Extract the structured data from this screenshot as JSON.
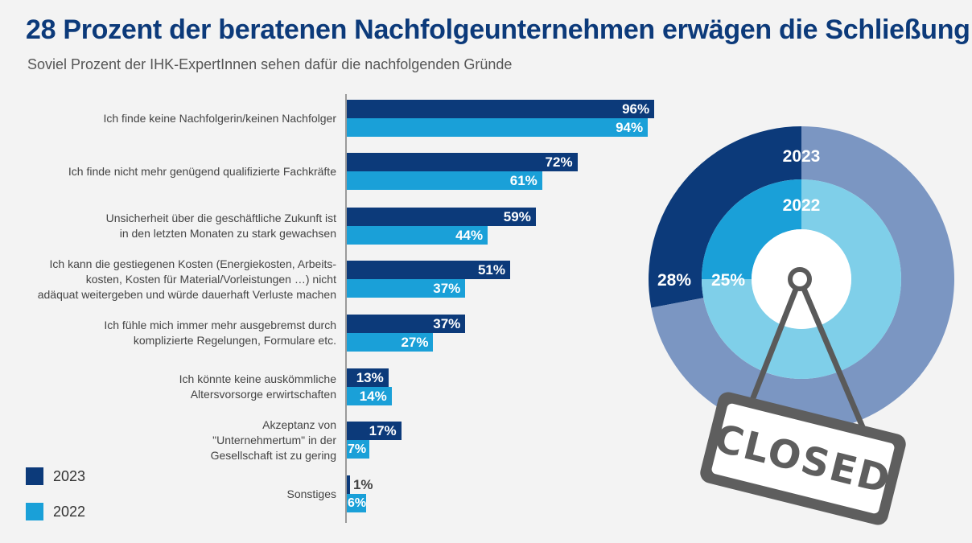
{
  "title": "28 Prozent der beratenen Nachfolgeunternehmen erwägen die Schließung",
  "subtitle": "Soviel Prozent der IHK-ExpertInnen sehen dafür die nachfolgenden Gründe",
  "colors": {
    "s2023": "#0c3a7a",
    "s2022": "#1aa0d8",
    "title": "#0c3a7a"
  },
  "legend": [
    {
      "label": "2023",
      "color": "#0c3a7a"
    },
    {
      "label": "2022",
      "color": "#1aa0d8"
    }
  ],
  "chart_data": [
    {
      "type": "bar",
      "orientation": "horizontal",
      "categories": [
        "Ich finde keine Nachfolgerin/keinen Nachfolger",
        "Ich finde nicht mehr genügend qualifizierte Fachkräfte",
        "Unsicherheit über die geschäftliche Zukunft ist in den letzten Monaten zu stark gewachsen",
        "Ich kann die gestiegenen Kosten (Energiekosten, Arbeits-kosten, Kosten für Material/Vorleistungen …) nicht adäquat weitergeben und würde dauerhaft Verluste machen",
        "Ich fühle mich immer mehr ausgebremst durch komplizierte Regelungen, Formulare etc.",
        "Ich könnte keine auskömmliche Altersvorsorge erwirtschaften",
        "Akzeptanz von \"Unternehmertum\" in der Gesellschaft ist zu gering",
        "Sonstiges"
      ],
      "category_lines": [
        [
          "Ich finde keine Nachfolgerin/keinen Nachfolger"
        ],
        [
          "Ich finde nicht mehr genügend qualifizierte Fachkräfte"
        ],
        [
          "Unsicherheit über die geschäftliche Zukunft ist",
          "in den letzten Monaten zu stark gewachsen"
        ],
        [
          "Ich kann die gestiegenen Kosten (Energiekosten, Arbeits-",
          "kosten, Kosten für Material/Vorleistungen …) nicht",
          "adäquat weitergeben und würde dauerhaft Verluste machen"
        ],
        [
          "Ich fühle mich immer mehr ausgebremst durch",
          "komplizierte Regelungen, Formulare etc."
        ],
        [
          "Ich könnte keine auskömmliche",
          "Altersvorsorge erwirtschaften"
        ],
        [
          "Akzeptanz von",
          "\"Unternehmertum\" in der",
          "Gesellschaft ist zu gering"
        ],
        [
          "Sonstiges"
        ]
      ],
      "series": [
        {
          "name": "2023",
          "values": [
            96,
            72,
            59,
            51,
            37,
            13,
            17,
            1
          ],
          "labels": [
            "96%",
            "72%",
            "59%",
            "51%",
            "37%",
            "13%",
            "17%",
            "1%"
          ]
        },
        {
          "name": "2022",
          "values": [
            94,
            61,
            44,
            37,
            27,
            14,
            7,
            6
          ],
          "labels": [
            "94%",
            "61%",
            "44%",
            "37%",
            "27%",
            "14%",
            "7%",
            "6%"
          ]
        }
      ],
      "xlim": [
        0,
        100
      ],
      "grid": false,
      "legend_position": "bottom-left"
    },
    {
      "type": "pie",
      "variant": "nested-donut",
      "rings": [
        {
          "name": "2023",
          "value": 28,
          "value_label": "28%",
          "remainder": 72,
          "color": "#0c3a7a",
          "remainder_color": "#7b96c2"
        },
        {
          "name": "2022",
          "value": 25,
          "value_label": "25%",
          "remainder": 75,
          "color": "#1aa0d8",
          "remainder_color": "#7fcfe9"
        }
      ]
    }
  ],
  "sign": {
    "text": "CLOSED",
    "icon": "closed-sign-icon"
  }
}
